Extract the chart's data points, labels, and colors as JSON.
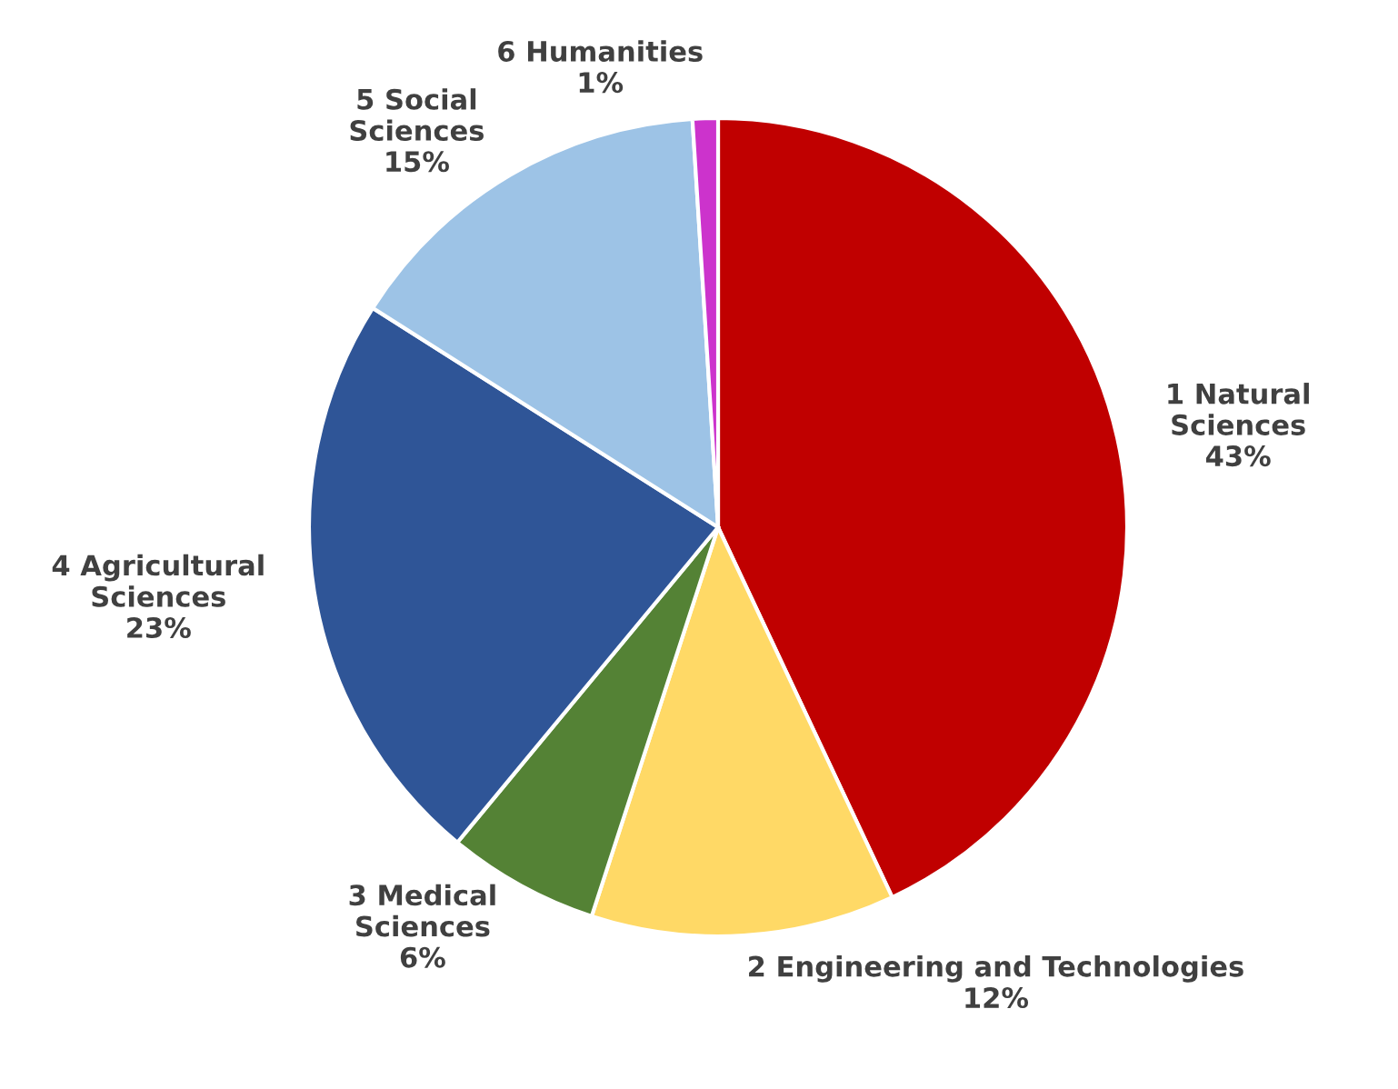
{
  "chart_data": {
    "type": "pie",
    "categories": [
      "1 Natural\nSciences",
      "2 Engineering and Technologies",
      "3 Medical\nSciences",
      "4 Agricultural\nSciences",
      "5 Social\nSciences",
      "6 Humanities"
    ],
    "values": [
      43,
      12,
      6,
      23,
      15,
      1
    ],
    "value_labels": [
      "43%",
      "12%",
      "6%",
      "23%",
      "15%",
      "1%"
    ],
    "colors": [
      "#c00000",
      "#ffd966",
      "#548235",
      "#2f5597",
      "#9dc3e6",
      "#cc33cc"
    ]
  }
}
